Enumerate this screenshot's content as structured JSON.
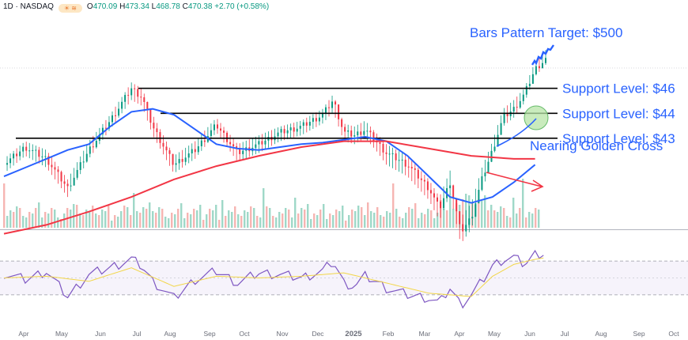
{
  "header": {
    "symbol": "1D · NASDAQ",
    "open_label": "O",
    "open": "470.09",
    "high_label": "H",
    "high": "473.34",
    "low_label": "L",
    "low": "468.78",
    "close_label": "C",
    "close": "470.38",
    "change": "+2.70 (+0.58%)"
  },
  "chart_data": {
    "type": "line",
    "title": "",
    "x_axis": {
      "ticks": [
        "Apr",
        "May",
        "Jun",
        "Jul",
        "Aug",
        "Sep",
        "Oct",
        "Nov",
        "Dec",
        "2025",
        "Feb",
        "Mar",
        "Apr",
        "May",
        "Jun",
        "Jul",
        "Aug",
        "Sep",
        "Oct"
      ]
    },
    "price_panel": {
      "ylim": [
        370,
        510
      ],
      "support_levels": [
        {
          "label": "Support Level: $46",
          "value": 466
        },
        {
          "label": "Support Level: $44",
          "value": 449
        },
        {
          "label": "Support Level: $43",
          "value": 432
        }
      ],
      "annotations": {
        "target": "Bars Pattern Target: $500",
        "golden_cross": "Nearing Golden Cross"
      },
      "series": [
        {
          "name": "",
          "color": "#2962ff",
          "values": [
            [
              0,
              406
            ],
            [
              2,
              412
            ],
            [
              4,
              418
            ],
            [
              6,
              424
            ],
            [
              8,
              428
            ],
            [
              10,
              440
            ],
            [
              12,
              450
            ],
            [
              14,
              452
            ],
            [
              16,
              448
            ],
            [
              18,
              438
            ],
            [
              20,
              428
            ],
            [
              22,
              425
            ],
            [
              24,
              424
            ],
            [
              26,
              426
            ],
            [
              28,
              428
            ],
            [
              30,
              429
            ],
            [
              32,
              431
            ],
            [
              34,
              433
            ],
            [
              36,
              430
            ],
            [
              38,
              420
            ],
            [
              40,
              406
            ],
            [
              42,
              392
            ],
            [
              44,
              388
            ],
            [
              46,
              392
            ],
            [
              48,
              402
            ],
            [
              50,
              414
            ]
          ]
        },
        {
          "name": "",
          "color": "#f23645",
          "values": [
            [
              0,
              367
            ],
            [
              4,
              373
            ],
            [
              8,
              382
            ],
            [
              12,
              392
            ],
            [
              16,
              404
            ],
            [
              20,
              413
            ],
            [
              24,
              420
            ],
            [
              28,
              426
            ],
            [
              32,
              430
            ],
            [
              36,
              430
            ],
            [
              40,
              425
            ],
            [
              44,
              420
            ],
            [
              48,
              418
            ],
            [
              50,
              418
            ]
          ]
        }
      ],
      "price_path": [
        [
          0,
          414
        ],
        [
          2,
          426
        ],
        [
          4,
          418
        ],
        [
          6,
          398
        ],
        [
          8,
          424
        ],
        [
          10,
          444
        ],
        [
          12,
          466
        ],
        [
          13,
          460
        ],
        [
          14,
          440
        ],
        [
          16,
          414
        ],
        [
          18,
          424
        ],
        [
          20,
          441
        ],
        [
          22,
          422
        ],
        [
          24,
          428
        ],
        [
          26,
          436
        ],
        [
          28,
          440
        ],
        [
          30,
          448
        ],
        [
          31,
          458
        ],
        [
          32,
          436
        ],
        [
          33,
          434
        ],
        [
          34,
          438
        ],
        [
          35,
          430
        ],
        [
          36,
          422
        ],
        [
          38,
          414
        ],
        [
          40,
          398
        ],
        [
          41,
          384
        ],
        [
          42,
          402
        ],
        [
          43,
          368
        ],
        [
          44,
          378
        ],
        [
          45,
          404
        ],
        [
          46,
          424
        ],
        [
          47,
          446
        ],
        [
          48,
          452
        ],
        [
          49,
          462
        ],
        [
          50,
          479
        ],
        [
          51,
          486
        ]
      ],
      "price_high": [
        [
          0,
          418
        ],
        [
          2,
          430
        ],
        [
          4,
          424
        ],
        [
          6,
          404
        ],
        [
          8,
          430
        ],
        [
          10,
          448
        ],
        [
          12,
          470
        ],
        [
          13,
          466
        ],
        [
          14,
          448
        ],
        [
          16,
          420
        ],
        [
          18,
          430
        ],
        [
          20,
          446
        ],
        [
          22,
          428
        ],
        [
          24,
          434
        ],
        [
          26,
          440
        ],
        [
          28,
          444
        ],
        [
          30,
          452
        ],
        [
          31,
          462
        ],
        [
          32,
          442
        ],
        [
          33,
          440
        ],
        [
          34,
          444
        ],
        [
          35,
          436
        ],
        [
          36,
          428
        ],
        [
          38,
          420
        ],
        [
          40,
          404
        ],
        [
          41,
          392
        ],
        [
          42,
          410
        ],
        [
          43,
          378
        ],
        [
          44,
          388
        ],
        [
          45,
          412
        ],
        [
          46,
          430
        ],
        [
          47,
          452
        ],
        [
          48,
          458
        ],
        [
          49,
          466
        ],
        [
          50,
          484
        ],
        [
          51,
          492
        ]
      ],
      "price_low": [
        [
          0,
          408
        ],
        [
          2,
          420
        ],
        [
          4,
          412
        ],
        [
          6,
          392
        ],
        [
          8,
          418
        ],
        [
          10,
          438
        ],
        [
          12,
          458
        ],
        [
          13,
          454
        ],
        [
          14,
          434
        ],
        [
          16,
          408
        ],
        [
          18,
          418
        ],
        [
          20,
          436
        ],
        [
          22,
          416
        ],
        [
          24,
          422
        ],
        [
          26,
          430
        ],
        [
          28,
          434
        ],
        [
          30,
          442
        ],
        [
          31,
          450
        ],
        [
          32,
          430
        ],
        [
          33,
          428
        ],
        [
          34,
          432
        ],
        [
          35,
          424
        ],
        [
          36,
          414
        ],
        [
          38,
          406
        ],
        [
          40,
          390
        ],
        [
          41,
          376
        ],
        [
          42,
          394
        ],
        [
          43,
          360
        ],
        [
          44,
          370
        ],
        [
          45,
          396
        ],
        [
          46,
          418
        ],
        [
          47,
          440
        ],
        [
          48,
          446
        ],
        [
          49,
          456
        ],
        [
          50,
          474
        ],
        [
          51,
          482
        ]
      ]
    },
    "rsi_panel": {
      "ylim": [
        0,
        100
      ],
      "bands": [
        30,
        70
      ],
      "series": [
        {
          "name": "",
          "color": "#7e57c2",
          "values": [
            [
              0,
              55
            ],
            [
              2,
              48
            ],
            [
              4,
              58
            ],
            [
              6,
              28
            ],
            [
              8,
              54
            ],
            [
              10,
              62
            ],
            [
              12,
              72
            ],
            [
              13,
              64
            ],
            [
              14,
              46
            ],
            [
              16,
              26
            ],
            [
              18,
              48
            ],
            [
              20,
              58
            ],
            [
              22,
              44
            ],
            [
              24,
              56
            ],
            [
              26,
              54
            ],
            [
              28,
              50
            ],
            [
              30,
              58
            ],
            [
              31,
              70
            ],
            [
              32,
              44
            ],
            [
              33,
              40
            ],
            [
              34,
              52
            ],
            [
              35,
              46
            ],
            [
              36,
              38
            ],
            [
              38,
              30
            ],
            [
              40,
              26
            ],
            [
              41,
              20
            ],
            [
              42,
              38
            ],
            [
              43,
              18
            ],
            [
              44,
              30
            ],
            [
              45,
              46
            ],
            [
              46,
              64
            ],
            [
              47,
              72
            ],
            [
              48,
              74
            ],
            [
              49,
              66
            ],
            [
              50,
              78
            ],
            [
              51,
              80
            ]
          ]
        },
        {
          "name": "",
          "color": "#f2d649",
          "values": [
            [
              0,
              50
            ],
            [
              4,
              52
            ],
            [
              8,
              46
            ],
            [
              12,
              62
            ],
            [
              16,
              40
            ],
            [
              20,
              52
            ],
            [
              24,
              50
            ],
            [
              28,
              52
            ],
            [
              32,
              56
            ],
            [
              36,
              44
            ],
            [
              40,
              32
            ],
            [
              44,
              28
            ],
            [
              46,
              52
            ],
            [
              48,
              66
            ],
            [
              50,
              72
            ],
            [
              51,
              74
            ]
          ]
        }
      ]
    },
    "grid": false,
    "legend": "none"
  }
}
